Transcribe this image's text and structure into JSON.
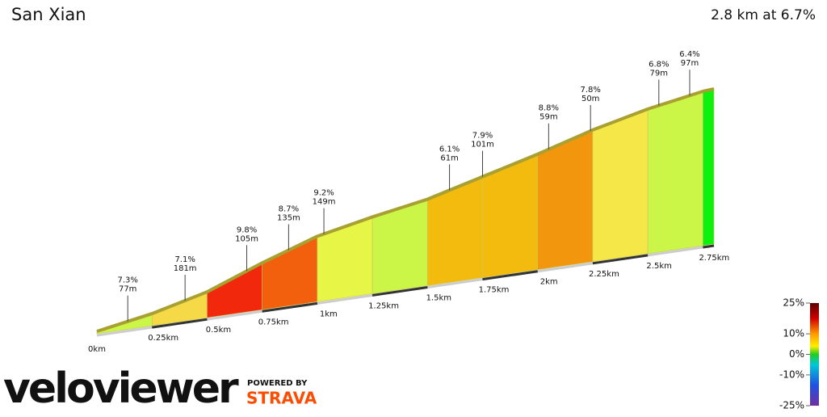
{
  "chart_data": {
    "type": "profile",
    "title": "San Xian",
    "subtitle": "2.8 km at 6.7%",
    "x": [
      0,
      0.25,
      0.5,
      0.75,
      1,
      1.25,
      1.5,
      1.75,
      2,
      2.25,
      2.5,
      2.75,
      2.8
    ],
    "elevation": [
      3,
      15,
      32,
      58,
      81,
      95,
      107,
      125,
      143,
      163,
      179,
      191,
      192
    ],
    "xlim": [
      0,
      2.8
    ],
    "xticks": [
      {
        "value": 0,
        "label": "0km"
      },
      {
        "value": 0.25,
        "label": "0.25km"
      },
      {
        "value": 0.5,
        "label": "0.5km"
      },
      {
        "value": 0.75,
        "label": "0.75km"
      },
      {
        "value": 1,
        "label": "1km"
      },
      {
        "value": 1.25,
        "label": "1.25km"
      },
      {
        "value": 1.5,
        "label": "1.5km"
      },
      {
        "value": 1.75,
        "label": "1.75km"
      },
      {
        "value": 2,
        "label": "2km"
      },
      {
        "value": 2.25,
        "label": "2.25km"
      },
      {
        "value": 2.5,
        "label": "2.5km"
      },
      {
        "value": 2.75,
        "label": "2.75km"
      }
    ],
    "annotations": [
      {
        "x": 0.14,
        "grade": "7.3%",
        "length": "77m"
      },
      {
        "x": 0.4,
        "grade": "7.1%",
        "length": "181m"
      },
      {
        "x": 0.68,
        "grade": "9.8%",
        "length": "105m"
      },
      {
        "x": 0.87,
        "grade": "8.7%",
        "length": "135m"
      },
      {
        "x": 1.03,
        "grade": "9.2%",
        "length": "149m"
      },
      {
        "x": 1.6,
        "grade": "6.1%",
        "length": "61m"
      },
      {
        "x": 1.75,
        "grade": "7.9%",
        "length": "101m"
      },
      {
        "x": 2.05,
        "grade": "8.8%",
        "length": "59m"
      },
      {
        "x": 2.24,
        "grade": "7.8%",
        "length": "50m"
      },
      {
        "x": 2.55,
        "grade": "6.8%",
        "length": "79m"
      },
      {
        "x": 2.69,
        "grade": "6.4%",
        "length": "97m"
      }
    ],
    "colorbar": {
      "clim": [
        -25,
        25
      ],
      "ticks": [
        {
          "value": 25,
          "label": "25%"
        },
        {
          "value": 10,
          "label": "10%"
        },
        {
          "value": 0,
          "label": "0%"
        },
        {
          "value": -10,
          "label": "-10%"
        },
        {
          "value": -25,
          "label": "-25%"
        }
      ]
    },
    "brand": {
      "name": "veloviewer",
      "powered": "POWERED BY",
      "partner": "STRAVA"
    }
  }
}
